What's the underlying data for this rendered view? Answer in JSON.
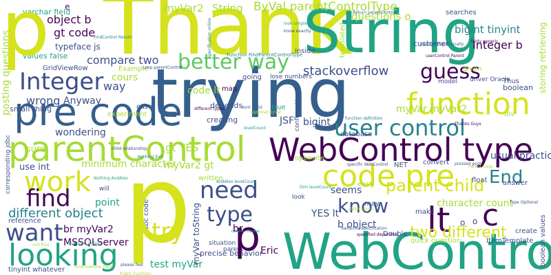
{
  "palette": {
    "yellow": "#d5e21c",
    "lime": "#a6db35",
    "green": "#5fc864",
    "teal": "#21a385",
    "cyan": "#26828e",
    "blue": "#355f8d",
    "indigo": "#3b4f8a",
    "purple": "#440154"
  },
  "words": [
    {
      "text": "Thank",
      "color": "yellow"
    },
    {
      "text": "String",
      "color": "teal"
    },
    {
      "text": "trying",
      "color": "blue"
    },
    {
      "text": "pre code",
      "color": "blue"
    },
    {
      "text": "parentControl",
      "color": "lime"
    },
    {
      "text": "WebControl type",
      "color": "purple"
    },
    {
      "text": "code pre",
      "color": "yellow"
    },
    {
      "text": "function",
      "color": "yellow"
    },
    {
      "text": "user control",
      "color": "cyan"
    },
    {
      "text": "guess",
      "color": "purple"
    },
    {
      "text": "Integer",
      "color": "indigo"
    },
    {
      "text": "better way",
      "color": "green"
    },
    {
      "text": "stackoverflow",
      "color": "indigo"
    },
    {
      "text": "work",
      "color": "yellow"
    },
    {
      "text": "find",
      "color": "purple"
    },
    {
      "text": "need",
      "color": "indigo"
    },
    {
      "text": "looking",
      "color": "teal"
    },
    {
      "text": "want",
      "color": "indigo"
    },
    {
      "text": "WebControl",
      "color": "teal"
    },
    {
      "text": "lt",
      "color": "purple"
    },
    {
      "text": "c",
      "color": "purple"
    },
    {
      "text": "know",
      "color": "indigo"
    },
    {
      "text": "End",
      "color": "cyan"
    },
    {
      "text": "parent child",
      "color": "yellow"
    },
    {
      "text": "type",
      "color": "indigo"
    },
    {
      "text": "try",
      "color": "yellow"
    },
    {
      "text": "different object",
      "color": "cyan"
    },
    {
      "text": "two different",
      "color": "yellow"
    },
    {
      "text": "object b",
      "color": "purple"
    },
    {
      "text": "gt code",
      "color": "purple"
    },
    {
      "text": "myVar2",
      "color": "lime"
    },
    {
      "text": "String",
      "color": "lime"
    },
    {
      "text": "ByVal parentControlType",
      "color": "lime"
    },
    {
      "text": "Integer b",
      "color": "purple"
    },
    {
      "text": "bigint tinyint",
      "color": "cyan"
    },
    {
      "text": "questions o",
      "color": "lime"
    },
    {
      "text": "compare two",
      "color": "indigo"
    },
    {
      "text": "code lt",
      "color": "lime"
    },
    {
      "text": "cours",
      "color": "lime"
    },
    {
      "text": "way",
      "color": "indigo"
    },
    {
      "text": "wrong",
      "color": "indigo"
    },
    {
      "text": "Anyway",
      "color": "indigo"
    },
    {
      "text": "wondering",
      "color": "indigo"
    },
    {
      "text": "gt YES",
      "color": "lime"
    },
    {
      "text": "JSF",
      "color": "indigo"
    },
    {
      "text": "bigint",
      "color": "indigo"
    },
    {
      "text": "myVar myVar2",
      "color": "lime"
    },
    {
      "text": "minimum character",
      "color": "lime"
    },
    {
      "text": "myVar2 gt",
      "color": "lime"
    },
    {
      "text": "character count",
      "color": "lime"
    },
    {
      "text": "usual practice",
      "color": "indigo"
    },
    {
      "text": "seems",
      "color": "indigo"
    },
    {
      "text": "YES lt",
      "color": "indigo"
    },
    {
      "text": "b object",
      "color": "indigo"
    },
    {
      "text": "br myVar2",
      "color": "purple"
    },
    {
      "text": "MSSQLServer",
      "color": "purple"
    },
    {
      "text": "test myVar",
      "color": "teal"
    },
    {
      "text": "Eric",
      "color": "purple"
    },
    {
      "text": "precise behavior",
      "color": "indigo"
    },
    {
      "text": "point",
      "color": "teal"
    },
    {
      "text": "use int",
      "color": "indigo"
    },
    {
      "text": "sure",
      "color": "lime"
    },
    {
      "text": "posting questions",
      "color": "lime"
    },
    {
      "text": "values false",
      "color": "teal"
    },
    {
      "text": "typeface js",
      "color": "indigo"
    },
    {
      "text": "varchar field",
      "color": "teal"
    },
    {
      "text": "GridViewRow",
      "color": "indigo"
    },
    {
      "text": "small thing",
      "color": "indigo"
    },
    {
      "text": "Example",
      "color": "lime"
    },
    {
      "text": "experiment",
      "color": "lime"
    },
    {
      "text": "case",
      "color": "indigo"
    },
    {
      "text": "map",
      "color": "purple"
    },
    {
      "text": "depends",
      "color": "indigo"
    },
    {
      "text": "creating",
      "color": "indigo"
    },
    {
      "text": "true",
      "color": "teal"
    },
    {
      "text": "going",
      "color": "indigo"
    },
    {
      "text": "lose numbers",
      "color": "indigo"
    },
    {
      "text": "inside",
      "color": "indigo"
    },
    {
      "text": "customer",
      "color": "indigo"
    },
    {
      "text": "searches",
      "color": "indigo"
    },
    {
      "text": "translated",
      "color": "lime"
    },
    {
      "text": "given",
      "color": "lime"
    },
    {
      "text": "driver Oracle",
      "color": "indigo"
    },
    {
      "text": "model",
      "color": "indigo"
    },
    {
      "text": "Thus",
      "color": "indigo"
    },
    {
      "text": "boolean",
      "color": "indigo"
    },
    {
      "text": "storing retrieving",
      "color": "lime"
    },
    {
      "text": "div",
      "color": "lime"
    },
    {
      "text": "database",
      "color": "indigo"
    },
    {
      "text": "opposite",
      "color": "lime"
    },
    {
      "text": "convert",
      "color": "indigo"
    },
    {
      "text": "float",
      "color": "indigo"
    },
    {
      "text": "answer",
      "color": "indigo"
    },
    {
      "text": "NET",
      "color": "indigo"
    },
    {
      "text": "may",
      "color": "indigo"
    },
    {
      "text": "easy",
      "color": "lime"
    },
    {
      "text": "make",
      "color": "indigo"
    },
    {
      "text": "Double",
      "color": "indigo"
    },
    {
      "text": "quick question",
      "color": "lime"
    },
    {
      "text": "ItemTemplate",
      "color": "indigo"
    },
    {
      "text": "create",
      "color": "indigo"
    },
    {
      "text": "boolean values",
      "color": "indigo"
    },
    {
      "text": "parent",
      "color": "indigo"
    },
    {
      "text": "situation",
      "color": "indigo"
    },
    {
      "text": "look",
      "color": "indigo"
    },
    {
      "text": "written",
      "color": "lime"
    },
    {
      "text": "will",
      "color": "indigo"
    },
    {
      "text": "reference",
      "color": "indigo"
    },
    {
      "text": "tinyint whatever",
      "color": "indigo"
    },
    {
      "text": "jdbc code",
      "color": "indigo"
    },
    {
      "text": "myVar toString",
      "color": "indigo"
    },
    {
      "text": "corresponding jdbc",
      "color": "indigo"
    },
    {
      "text": "confirmation",
      "color": "indigo"
    },
    {
      "text": "br",
      "color": "purple"
    },
    {
      "text": "e",
      "color": "purple"
    },
    {
      "text": "p",
      "color": "yellow"
    },
    {
      "text": "p",
      "color": "yellow"
    },
    {
      "text": "p",
      "color": "purple"
    },
    {
      "text": "o",
      "color": "indigo"
    },
    {
      "text": "o",
      "color": "indigo"
    }
  ],
  "small_text": [
    "child relationship",
    "Nothing AndAlso",
    "Optional ByVal",
    "Function FindParentControlType",
    "Return parentControl",
    "userControl Parent",
    "specific WebControl",
    "levelCount",
    "Public Function",
    "function definition",
    "pressed post",
    "Thanks Guys",
    "Type Optional",
    "Dim levelCount",
    "childControl",
    "specification online",
    "relationship basically",
    "fairly generic",
    "know exactly",
    "look simple",
    "Parent Loop",
    "Nothing Exit",
    "behavior specification",
    "specified depending",
    "please feel",
    "online maybe",
    "mill find",
    "FindControl Return",
    "dont mind",
    "different types",
    "Loop parentControl",
    "Function Unless",
    "GridViewRow Panel",
    "AndAlso levelCount"
  ]
}
